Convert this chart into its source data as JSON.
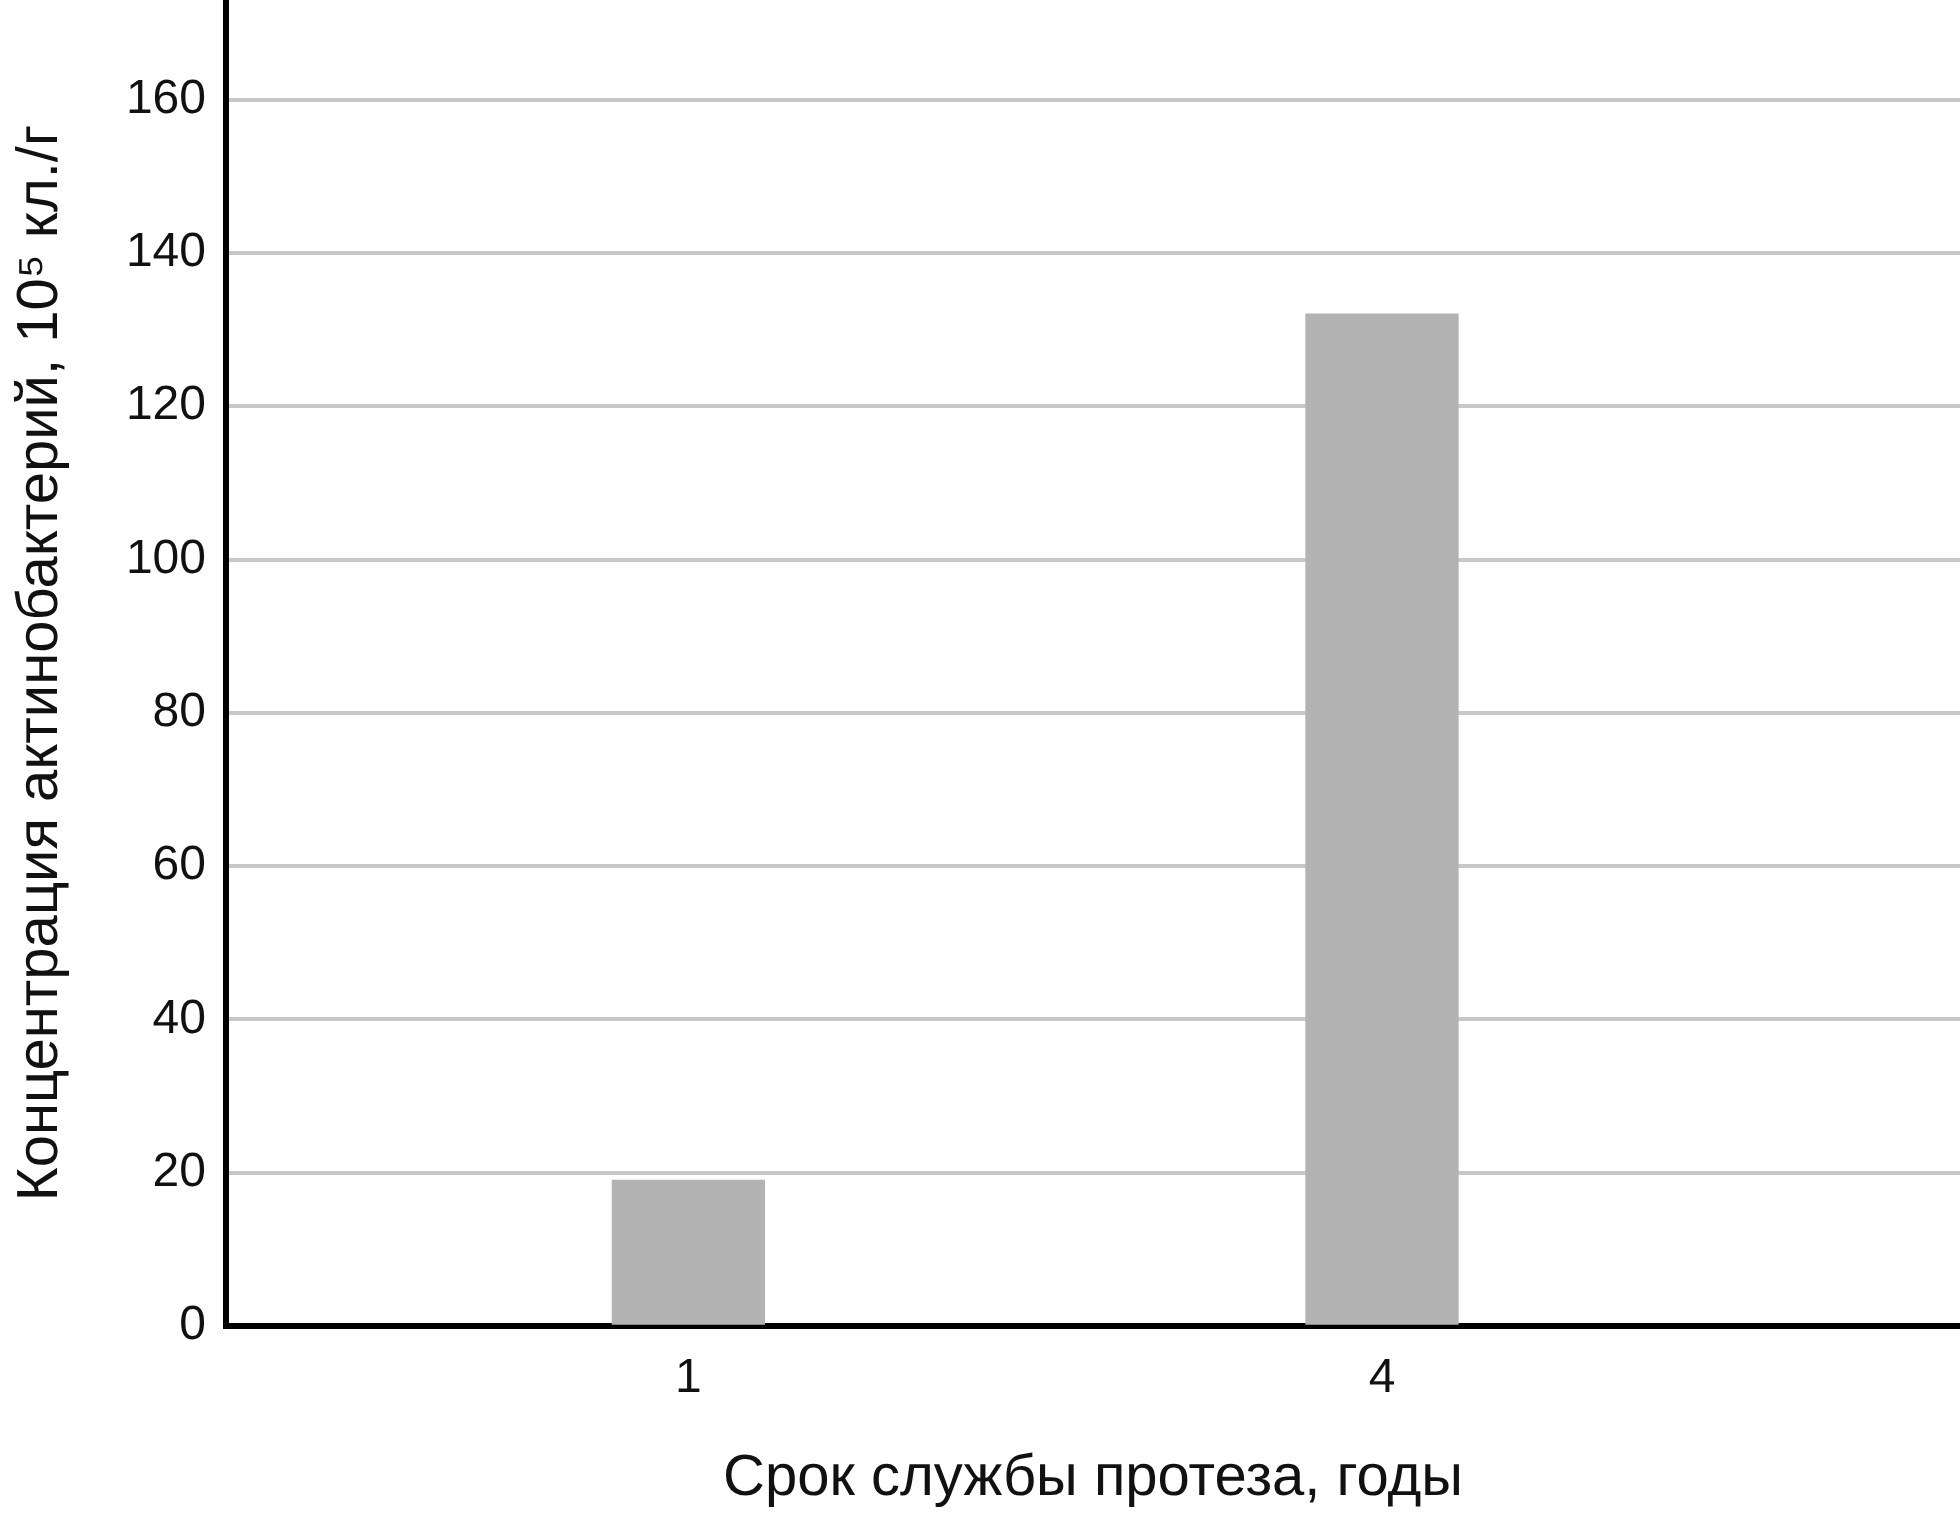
{
  "chart_data": {
    "type": "bar",
    "x": [
      1,
      4
    ],
    "values": [
      19,
      132
    ],
    "color": "#b3b3b3",
    "xlabel": "Срок службы протеза, годы",
    "ylabel": "Концентрация актинобактерий, 10⁵ кл./г",
    "xlim": [
      -1,
      6.5
    ],
    "xticks": [
      1,
      4
    ],
    "ylim": [
      0,
      173
    ],
    "yticks": [
      0,
      20,
      40,
      60,
      80,
      100,
      120,
      140,
      160
    ],
    "grid": "y",
    "legend": false
  }
}
